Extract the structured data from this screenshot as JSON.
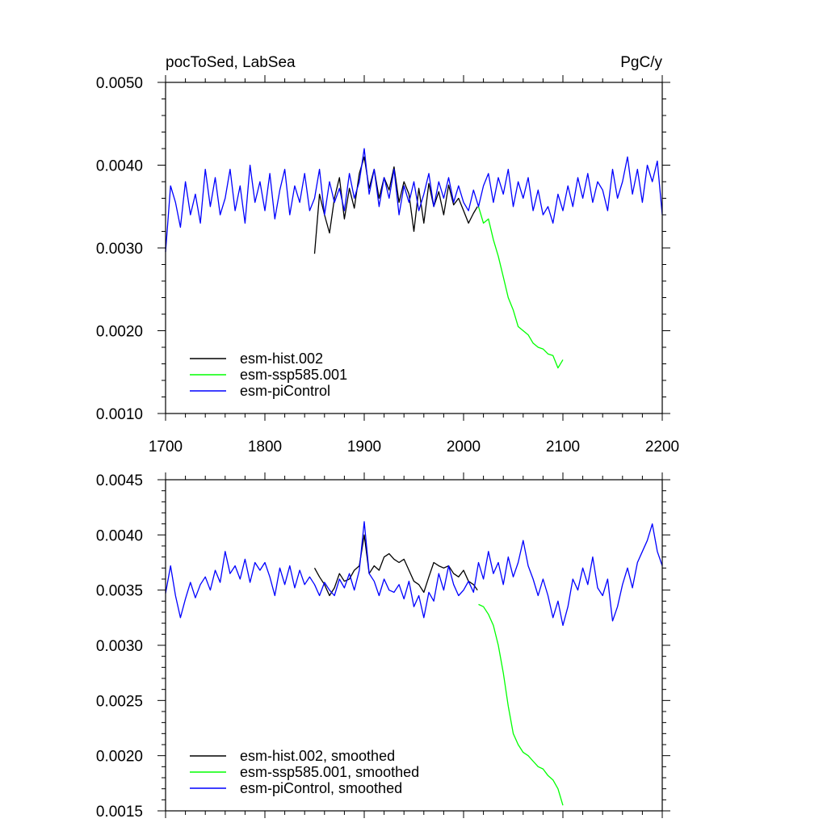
{
  "chart_data": [
    {
      "type": "line",
      "title_left": "pocToSed, LabSea",
      "title_right": "PgC/y",
      "xlim": [
        1700,
        2200
      ],
      "ylim": [
        0.001,
        0.005
      ],
      "x_ticks": [
        1700,
        1800,
        1900,
        2000,
        2100,
        2200
      ],
      "x_tick_labels": [
        "1700",
        "1800",
        "1900",
        "2000",
        "2100",
        "2200"
      ],
      "y_ticks": [
        0.001,
        0.002,
        0.003,
        0.004,
        0.005
      ],
      "y_tick_labels": [
        "0.0010",
        "0.0020",
        "0.0030",
        "0.0040",
        "0.0050"
      ],
      "legend_position": "bottom-left",
      "series": [
        {
          "name": "esm-hist.002",
          "color": "#000000",
          "description": "annual values",
          "x": [
            1850,
            1855,
            1860,
            1865,
            1870,
            1875,
            1880,
            1885,
            1890,
            1895,
            1900,
            1905,
            1910,
            1915,
            1920,
            1925,
            1930,
            1935,
            1940,
            1945,
            1950,
            1955,
            1960,
            1965,
            1970,
            1975,
            1980,
            1985,
            1990,
            1995,
            2000,
            2005,
            2010,
            2014
          ],
          "values": [
            0.00293,
            0.00365,
            0.0034,
            0.00318,
            0.0036,
            0.00385,
            0.00335,
            0.00372,
            0.00348,
            0.0039,
            0.0041,
            0.00372,
            0.00395,
            0.0036,
            0.00385,
            0.0037,
            0.00398,
            0.00355,
            0.0038,
            0.00365,
            0.0032,
            0.00372,
            0.0033,
            0.00378,
            0.0035,
            0.00368,
            0.0034,
            0.00376,
            0.00352,
            0.0036,
            0.00345,
            0.0033,
            0.00342,
            0.0035
          ]
        },
        {
          "name": "esm-ssp585.001",
          "color": "#00ff00",
          "description": "annual values",
          "x": [
            2015,
            2020,
            2025,
            2030,
            2035,
            2040,
            2045,
            2050,
            2055,
            2060,
            2065,
            2070,
            2075,
            2080,
            2085,
            2090,
            2095,
            2100
          ],
          "values": [
            0.0035,
            0.0033,
            0.00335,
            0.0031,
            0.0029,
            0.00265,
            0.0024,
            0.00225,
            0.00205,
            0.002,
            0.00195,
            0.00185,
            0.0018,
            0.00178,
            0.00172,
            0.0017,
            0.00155,
            0.00165
          ]
        },
        {
          "name": "esm-piControl",
          "color": "#0000ff",
          "description": "annual values",
          "x": [
            1700,
            1705,
            1710,
            1715,
            1720,
            1725,
            1730,
            1735,
            1740,
            1745,
            1750,
            1755,
            1760,
            1765,
            1770,
            1775,
            1780,
            1785,
            1790,
            1795,
            1800,
            1805,
            1810,
            1815,
            1820,
            1825,
            1830,
            1835,
            1840,
            1845,
            1850,
            1855,
            1860,
            1865,
            1870,
            1875,
            1880,
            1885,
            1890,
            1895,
            1900,
            1905,
            1910,
            1915,
            1920,
            1925,
            1930,
            1935,
            1940,
            1945,
            1950,
            1955,
            1960,
            1965,
            1970,
            1975,
            1980,
            1985,
            1990,
            1995,
            2000,
            2005,
            2010,
            2015,
            2020,
            2025,
            2030,
            2035,
            2040,
            2045,
            2050,
            2055,
            2060,
            2065,
            2070,
            2075,
            2080,
            2085,
            2090,
            2095,
            2100,
            2105,
            2110,
            2115,
            2120,
            2125,
            2130,
            2135,
            2140,
            2145,
            2150,
            2155,
            2160,
            2165,
            2170,
            2175,
            2180,
            2185,
            2190,
            2195,
            2200
          ],
          "values": [
            0.00295,
            0.00375,
            0.00355,
            0.00325,
            0.0038,
            0.0034,
            0.00365,
            0.0033,
            0.00395,
            0.0035,
            0.00385,
            0.0034,
            0.0036,
            0.00395,
            0.00345,
            0.00375,
            0.0033,
            0.004,
            0.00355,
            0.0038,
            0.00345,
            0.0039,
            0.00335,
            0.0037,
            0.00395,
            0.0034,
            0.00375,
            0.00355,
            0.0039,
            0.00345,
            0.0036,
            0.00395,
            0.0034,
            0.0038,
            0.00355,
            0.00372,
            0.00345,
            0.0039,
            0.0036,
            0.0038,
            0.0042,
            0.00365,
            0.00395,
            0.0035,
            0.00385,
            0.0036,
            0.00395,
            0.0034,
            0.00375,
            0.00355,
            0.0038,
            0.00345,
            0.00365,
            0.0039,
            0.0035,
            0.0038,
            0.0036,
            0.00385,
            0.00355,
            0.00375,
            0.00355,
            0.00345,
            0.0037,
            0.0035,
            0.00375,
            0.0039,
            0.00355,
            0.00385,
            0.00365,
            0.00395,
            0.0035,
            0.0038,
            0.0036,
            0.00385,
            0.00345,
            0.0037,
            0.0034,
            0.0035,
            0.0033,
            0.00365,
            0.00345,
            0.00375,
            0.0035,
            0.00385,
            0.0036,
            0.0039,
            0.00355,
            0.0038,
            0.0037,
            0.00345,
            0.00395,
            0.0036,
            0.0038,
            0.0041,
            0.00365,
            0.00395,
            0.00355,
            0.004,
            0.0038,
            0.00405,
            0.0034
          ]
        }
      ]
    },
    {
      "type": "line",
      "xlim": [
        1700,
        2200
      ],
      "ylim": [
        0.0015,
        0.0045
      ],
      "x_ticks": [
        1700,
        1800,
        1900,
        2000,
        2100,
        2200
      ],
      "y_ticks": [
        0.0015,
        0.002,
        0.0025,
        0.003,
        0.0035,
        0.004,
        0.0045
      ],
      "y_tick_labels": [
        "0.0015",
        "0.0020",
        "0.0025",
        "0.0030",
        "0.0035",
        "0.0040",
        "0.0045"
      ],
      "legend_position": "bottom-left",
      "series": [
        {
          "name": "esm-hist.002, smoothed",
          "color": "#000000",
          "x": [
            1850,
            1855,
            1860,
            1865,
            1870,
            1875,
            1880,
            1885,
            1890,
            1895,
            1900,
            1905,
            1910,
            1915,
            1920,
            1925,
            1930,
            1935,
            1940,
            1945,
            1950,
            1955,
            1960,
            1965,
            1970,
            1975,
            1980,
            1985,
            1990,
            1995,
            2000,
            2005,
            2010,
            2014
          ],
          "values": [
            0.0037,
            0.00362,
            0.00355,
            0.00345,
            0.00352,
            0.00365,
            0.00358,
            0.0036,
            0.00368,
            0.00372,
            0.004,
            0.00365,
            0.00372,
            0.00368,
            0.0038,
            0.00383,
            0.00378,
            0.00375,
            0.00378,
            0.00368,
            0.00358,
            0.00355,
            0.00348,
            0.00362,
            0.00375,
            0.00372,
            0.0037,
            0.00372,
            0.00365,
            0.00362,
            0.00368,
            0.00358,
            0.00355,
            0.0035
          ]
        },
        {
          "name": "esm-ssp585.001, smoothed",
          "color": "#00ff00",
          "x": [
            2015,
            2020,
            2025,
            2030,
            2035,
            2040,
            2045,
            2050,
            2055,
            2060,
            2065,
            2070,
            2075,
            2080,
            2085,
            2090,
            2095,
            2100
          ],
          "values": [
            0.00337,
            0.00335,
            0.00328,
            0.00318,
            0.003,
            0.00275,
            0.00245,
            0.0022,
            0.0021,
            0.00203,
            0.002,
            0.00195,
            0.0019,
            0.00188,
            0.00182,
            0.00178,
            0.0017,
            0.00155
          ]
        },
        {
          "name": "esm-piControl, smoothed",
          "color": "#0000ff",
          "x": [
            1700,
            1705,
            1710,
            1715,
            1720,
            1725,
            1730,
            1735,
            1740,
            1745,
            1750,
            1755,
            1760,
            1765,
            1770,
            1775,
            1780,
            1785,
            1790,
            1795,
            1800,
            1805,
            1810,
            1815,
            1820,
            1825,
            1830,
            1835,
            1840,
            1845,
            1850,
            1855,
            1860,
            1865,
            1870,
            1875,
            1880,
            1885,
            1890,
            1895,
            1900,
            1905,
            1910,
            1915,
            1920,
            1925,
            1930,
            1935,
            1940,
            1945,
            1950,
            1955,
            1960,
            1965,
            1970,
            1975,
            1980,
            1985,
            1990,
            1995,
            2000,
            2005,
            2010,
            2015,
            2020,
            2025,
            2030,
            2035,
            2040,
            2045,
            2050,
            2055,
            2060,
            2065,
            2070,
            2075,
            2080,
            2085,
            2090,
            2095,
            2100,
            2105,
            2110,
            2115,
            2120,
            2125,
            2130,
            2135,
            2140,
            2145,
            2150,
            2155,
            2160,
            2165,
            2170,
            2175,
            2180,
            2185,
            2190,
            2195,
            2200
          ],
          "values": [
            0.00347,
            0.00372,
            0.00345,
            0.00325,
            0.00342,
            0.00357,
            0.00343,
            0.00355,
            0.00362,
            0.0035,
            0.00368,
            0.00357,
            0.00385,
            0.00365,
            0.00372,
            0.0036,
            0.00378,
            0.00357,
            0.00375,
            0.00368,
            0.00375,
            0.00362,
            0.00345,
            0.0037,
            0.00355,
            0.00372,
            0.00352,
            0.00368,
            0.00355,
            0.00362,
            0.00355,
            0.00345,
            0.00357,
            0.0035,
            0.00345,
            0.0036,
            0.00352,
            0.00365,
            0.0035,
            0.00368,
            0.00412,
            0.00365,
            0.00358,
            0.00345,
            0.0036,
            0.0035,
            0.00348,
            0.00355,
            0.00342,
            0.00358,
            0.00335,
            0.00345,
            0.00325,
            0.00348,
            0.0034,
            0.00365,
            0.0035,
            0.00372,
            0.00355,
            0.00345,
            0.0035,
            0.00358,
            0.00348,
            0.00375,
            0.0036,
            0.00385,
            0.00365,
            0.00375,
            0.00355,
            0.0038,
            0.00362,
            0.00375,
            0.00395,
            0.00372,
            0.0036,
            0.00345,
            0.0036,
            0.00345,
            0.00325,
            0.0034,
            0.00318,
            0.00335,
            0.0036,
            0.0035,
            0.0037,
            0.00355,
            0.0038,
            0.00352,
            0.00345,
            0.0036,
            0.00322,
            0.00335,
            0.00355,
            0.0037,
            0.00352,
            0.00375,
            0.00385,
            0.00395,
            0.0041,
            0.00385,
            0.00372
          ]
        }
      ]
    }
  ]
}
